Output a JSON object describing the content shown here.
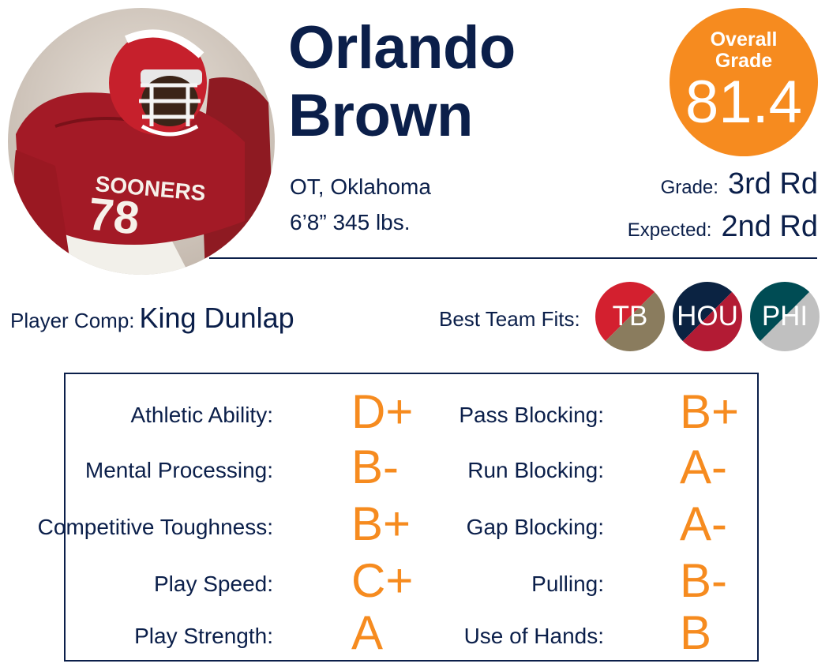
{
  "player": {
    "first_name": "Orlando",
    "last_name": "Brown",
    "position_school": "OT, Oklahoma",
    "height_weight": "6’8” 345 lbs.",
    "photo_jersey_text": "SOONERS"
  },
  "overall": {
    "label_line1": "Overall",
    "label_line2": "Grade",
    "value": "81.4"
  },
  "grade": {
    "label": "Grade:",
    "value": "3rd Rd"
  },
  "expected": {
    "label": "Expected:",
    "value": "2nd Rd"
  },
  "comp": {
    "label": "Player Comp:",
    "value": "King Dunlap"
  },
  "team_fits": {
    "label": "Best Team Fits:",
    "teams": [
      {
        "abbr": "TB",
        "color1": "#d3202f",
        "color2": "#8a7c5e"
      },
      {
        "abbr": "HOU",
        "color1": "#0b2342",
        "color2": "#b31b34"
      },
      {
        "abbr": "PHI",
        "color1": "#004c54",
        "color2": "#c0c0c0"
      }
    ]
  },
  "grades_left": [
    {
      "label": "Athletic Ability:",
      "value": "D+"
    },
    {
      "label": "Mental Processing:",
      "value": "B-"
    },
    {
      "label": "Competitive Toughness:",
      "value": "B+"
    },
    {
      "label": "Play Speed:",
      "value": "C+"
    },
    {
      "label": "Play Strength:",
      "value": "A"
    }
  ],
  "grades_right": [
    {
      "label": "Pass Blocking:",
      "value": "B+"
    },
    {
      "label": "Run Blocking:",
      "value": "A-"
    },
    {
      "label": "Gap Blocking:",
      "value": "A-"
    },
    {
      "label": "Pulling:",
      "value": "B-"
    },
    {
      "label": "Use of Hands:",
      "value": "B"
    }
  ],
  "colors": {
    "navy": "#0b1f4a",
    "orange": "#f68b1f"
  }
}
